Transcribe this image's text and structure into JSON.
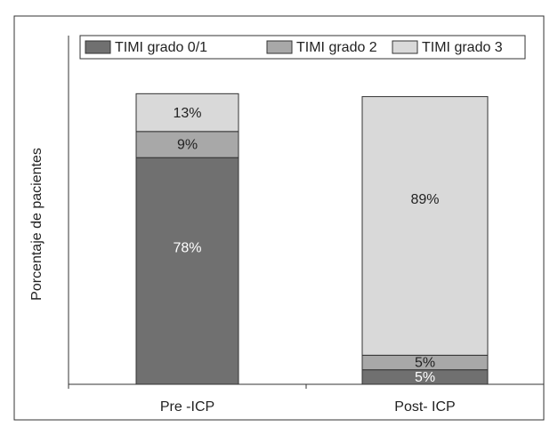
{
  "chart_data": {
    "type": "stacked-bar",
    "y_label": "Porcentaje de pacientes",
    "categories": [
      "Pre -ICP",
      "Post- ICP"
    ],
    "series": [
      {
        "name": "TIMI grado 0/1",
        "color": "#707070",
        "values": [
          78,
          5
        ],
        "value_labels": [
          "78%",
          "5%"
        ]
      },
      {
        "name": "TIMI grado 2",
        "color": "#a8a8a8",
        "values": [
          9,
          5
        ],
        "value_labels": [
          "9%",
          "5%"
        ]
      },
      {
        "name": "TIMI grado 3",
        "color": "#d9d9d9",
        "values": [
          13,
          89
        ],
        "value_labels": [
          "13%",
          "89%"
        ]
      }
    ],
    "ylim": [
      0,
      120
    ],
    "legend": "top"
  }
}
